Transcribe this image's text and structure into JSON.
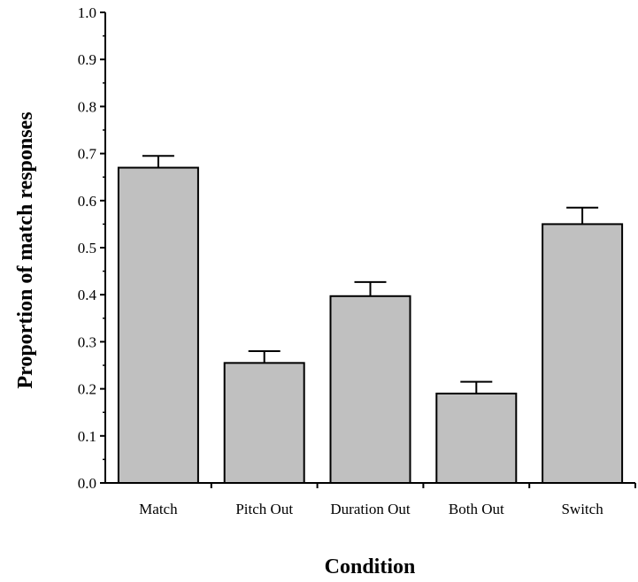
{
  "chart_data": {
    "type": "bar",
    "title": "",
    "xlabel": "Condition",
    "ylabel": "Proportion of match responses",
    "categories": [
      "Match",
      "Pitch Out",
      "Duration Out",
      "Both Out",
      "Switch"
    ],
    "values": [
      0.67,
      0.255,
      0.397,
      0.19,
      0.55
    ],
    "error_upper": [
      0.695,
      0.28,
      0.427,
      0.215,
      0.585
    ],
    "ylim": [
      0,
      1.0
    ],
    "yticks": [
      "0.0",
      "0.1",
      "0.2",
      "0.3",
      "0.4",
      "0.5",
      "0.6",
      "0.7",
      "0.8",
      "0.9",
      "1.0"
    ],
    "grid": false,
    "legend": "none",
    "bar_color": "#c0c0c0"
  }
}
